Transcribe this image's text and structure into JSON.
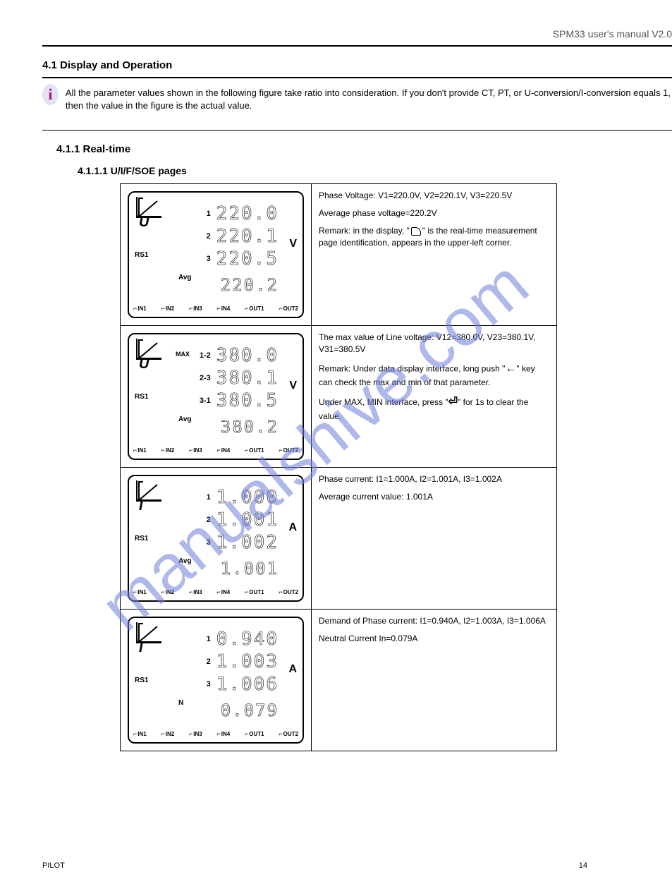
{
  "header": {
    "logo_text": "",
    "doc_title": "SPM33 user's manual V2.0",
    "chip_label": ""
  },
  "section": {
    "number": "4.1",
    "title": "Display and Operation",
    "note": "All the parameter values shown in the following figure take ratio into consideration. If you don't provide CT, PT, or U-conversion/I-conversion equals 1, then the value in the figure is the actual value.",
    "chapter": "4.1.1 Real-time",
    "sub": "4.1.1.1 U/I/F/SOE pages"
  },
  "rows": [
    {
      "symbol": "U",
      "labels": [
        "1",
        "2",
        "3"
      ],
      "values": [
        "220.0",
        "220.1",
        "220.5"
      ],
      "avg_label": "Avg",
      "avg": "220.2",
      "unit": "V",
      "n_label": "",
      "max": "",
      "desc": [
        "Phase Voltage: V1=220.0V, V2=220.1V, V3=220.5V",
        "Average phase voltage=220.2V",
        "Remark: in the display, \"  \" is the real-time measurement page identification, appears in the upper-left corner."
      ]
    },
    {
      "symbol": "U",
      "labels": [
        "1-2",
        "2-3",
        "3-1"
      ],
      "values": [
        "380.0",
        "380.1",
        "380.5"
      ],
      "avg_label": "Avg",
      "avg": "380.2",
      "unit": "V",
      "n_label": "",
      "max": "MAX",
      "desc": [
        "The max value of Line voltage: V12=380.0V, V23=380.1V, V31=380.5V",
        "Remark: Under data display interface, long push \"←\" key can check the max and min of that parameter.",
        "Under MAX, MIN interface, press \"⏎\" for 1s to clear the value."
      ]
    },
    {
      "symbol": "I",
      "labels": [
        "1",
        "2",
        "3"
      ],
      "values": [
        "1.000",
        "1.001",
        "1.002"
      ],
      "avg_label": "Avg",
      "avg": "1.001",
      "unit": "A",
      "n_label": "",
      "max": "",
      "desc": [
        "Phase current: I1=1.000A, I2=1.001A, I3=1.002A",
        "Average current value: 1.001A"
      ]
    },
    {
      "symbol": "I",
      "labels": [
        "1",
        "2",
        "3"
      ],
      "values": [
        "0.940",
        "1.003",
        "1.006"
      ],
      "avg_label": "",
      "avg": "0.079",
      "unit": "A",
      "n_label": "N",
      "max": "",
      "desc": [
        "Demand of Phase current: I1=0.940A, I2=1.003A, I3=1.006A",
        "Neutral Current In=0.079A"
      ]
    }
  ],
  "io": [
    "IN1",
    "IN2",
    "IN3",
    "IN4",
    "OUT1",
    "OUT2"
  ],
  "footer": {
    "company": "PILOT",
    "page": "14"
  },
  "colors": {
    "watermark": "#6f7fdc",
    "info_bg": "#dfe3f4",
    "info_fg": "#b01276"
  }
}
